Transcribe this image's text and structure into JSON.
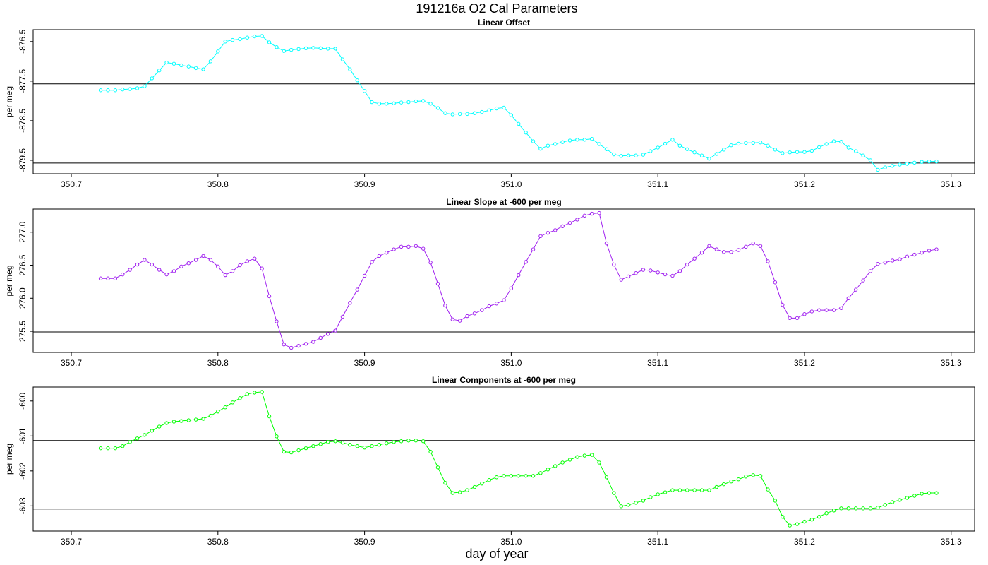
{
  "title": "191216a   O2 Cal Parameters",
  "chart_data": [
    {
      "type": "line",
      "title": "Linear Offset",
      "y_label": "per meg",
      "color": "#00ffff",
      "marker": "open-circle",
      "xlim": [
        350.674,
        351.316
      ],
      "xticks": [
        350.7,
        350.8,
        350.9,
        {
          "value": 351,
          "label": "351.0"
        },
        351.1,
        351.2,
        351.3
      ],
      "ylim": [
        -879.84,
        -876.2
      ],
      "yticks": [
        -876.5,
        -877.5,
        -878.5,
        -879.5
      ],
      "hlines": [
        -877.57,
        -879.57
      ],
      "x": [
        350.72,
        350.725,
        350.73,
        350.735,
        350.74,
        350.745,
        350.75,
        350.755,
        350.76,
        350.765,
        350.77,
        350.775,
        350.78,
        350.785,
        350.79,
        350.795,
        350.8,
        350.805,
        350.81,
        350.815,
        350.82,
        350.825,
        350.83,
        350.835,
        350.84,
        350.845,
        350.85,
        350.855,
        350.86,
        350.865,
        350.87,
        350.875,
        350.88,
        350.885,
        350.89,
        350.895,
        350.9,
        350.905,
        350.91,
        350.915,
        350.92,
        350.925,
        350.93,
        350.935,
        350.94,
        350.945,
        350.95,
        350.955,
        350.96,
        350.965,
        350.97,
        350.975,
        350.98,
        350.985,
        350.99,
        350.995,
        351,
        351.005,
        351.01,
        351.015,
        351.02,
        351.025,
        351.03,
        351.035,
        351.04,
        351.045,
        351.05,
        351.055,
        351.06,
        351.065,
        351.07,
        351.075,
        351.08,
        351.085,
        351.09,
        351.095,
        351.1,
        351.105,
        351.11,
        351.115,
        351.12,
        351.125,
        351.13,
        351.135,
        351.14,
        351.145,
        351.15,
        351.155,
        351.16,
        351.165,
        351.17,
        351.175,
        351.18,
        351.185,
        351.19,
        351.195,
        351.2,
        351.205,
        351.21,
        351.215,
        351.22,
        351.225,
        351.23,
        351.235,
        351.24,
        351.245,
        351.25,
        351.255,
        351.26,
        351.265,
        351.27,
        351.275,
        351.28,
        351.285,
        351.29
      ],
      "values": [
        -877.73,
        -877.73,
        -877.73,
        -877.71,
        -877.7,
        -877.68,
        -877.63,
        -877.43,
        -877.23,
        -877.03,
        -877.06,
        -877.1,
        -877.13,
        -877.17,
        -877.2,
        -877,
        -876.75,
        -876.5,
        -876.46,
        -876.44,
        -876.4,
        -876.37,
        -876.36,
        -876.52,
        -876.64,
        -876.74,
        -876.71,
        -876.69,
        -876.67,
        -876.66,
        -876.67,
        -876.68,
        -876.68,
        -876.95,
        -877.2,
        -877.48,
        -877.75,
        -878.03,
        -878.07,
        -878.07,
        -878.06,
        -878.04,
        -878.03,
        -878.01,
        -878,
        -878.07,
        -878.18,
        -878.31,
        -878.34,
        -878.33,
        -878.33,
        -878.31,
        -878.28,
        -878.24,
        -878.19,
        -878.17,
        -878.36,
        -878.58,
        -878.8,
        -879.02,
        -879.21,
        -879.13,
        -879.09,
        -879.04,
        -879,
        -878.98,
        -878.98,
        -878.96,
        -879.09,
        -879.22,
        -879.35,
        -879.39,
        -879.38,
        -879.38,
        -879.36,
        -879.27,
        -879.18,
        -879.08,
        -878.98,
        -879.13,
        -879.22,
        -879.3,
        -879.38,
        -879.46,
        -879.34,
        -879.23,
        -879.12,
        -879.08,
        -879.06,
        -879.06,
        -879.05,
        -879.13,
        -879.23,
        -879.32,
        -879.3,
        -879.29,
        -879.29,
        -879.26,
        -879.17,
        -879.09,
        -879.02,
        -879.03,
        -879.18,
        -879.27,
        -879.38,
        -879.5,
        -879.74,
        -879.68,
        -879.64,
        -879.61,
        -879.59,
        -879.56,
        -879.54,
        -879.53,
        -879.53
      ]
    },
    {
      "type": "line",
      "title": "Linear Slope at -600 per meg",
      "y_label": "per meg",
      "color": "#a020f0",
      "marker": "open-circle",
      "xlim": [
        350.674,
        351.316
      ],
      "xticks": [
        350.7,
        350.8,
        350.9,
        {
          "value": 351,
          "label": "351.0"
        },
        351.1,
        351.2,
        351.3
      ],
      "ylim": [
        275.18,
        277.35
      ],
      "yticks": [
        {
          "value": 277,
          "label": "277.0"
        },
        276.5,
        {
          "value": 276,
          "label": "276.0"
        },
        275.5
      ],
      "hlines": [
        275.49
      ],
      "x": [
        350.72,
        350.725,
        350.73,
        350.735,
        350.74,
        350.745,
        350.75,
        350.755,
        350.76,
        350.765,
        350.77,
        350.775,
        350.78,
        350.785,
        350.79,
        350.795,
        350.8,
        350.805,
        350.81,
        350.815,
        350.82,
        350.825,
        350.83,
        350.835,
        350.84,
        350.845,
        350.85,
        350.855,
        350.86,
        350.865,
        350.87,
        350.875,
        350.88,
        350.885,
        350.89,
        350.895,
        350.9,
        350.905,
        350.91,
        350.915,
        350.92,
        350.925,
        350.93,
        350.935,
        350.94,
        350.945,
        350.95,
        350.955,
        350.96,
        350.965,
        350.97,
        350.975,
        350.98,
        350.985,
        350.99,
        350.995,
        351,
        351.005,
        351.01,
        351.015,
        351.02,
        351.025,
        351.03,
        351.035,
        351.04,
        351.045,
        351.05,
        351.055,
        351.06,
        351.065,
        351.07,
        351.075,
        351.08,
        351.085,
        351.09,
        351.095,
        351.1,
        351.105,
        351.11,
        351.115,
        351.12,
        351.125,
        351.13,
        351.135,
        351.14,
        351.145,
        351.15,
        351.155,
        351.16,
        351.165,
        351.17,
        351.175,
        351.18,
        351.185,
        351.19,
        351.195,
        351.2,
        351.205,
        351.21,
        351.215,
        351.22,
        351.225,
        351.23,
        351.235,
        351.24,
        351.245,
        351.25,
        351.255,
        351.26,
        351.265,
        351.27,
        351.275,
        351.28,
        351.285,
        351.29
      ],
      "values": [
        276.3,
        276.3,
        276.3,
        276.36,
        276.43,
        276.51,
        276.58,
        276.51,
        276.43,
        276.36,
        276.41,
        276.48,
        276.53,
        276.58,
        276.64,
        276.58,
        276.48,
        276.35,
        276.41,
        276.5,
        276.56,
        276.6,
        276.45,
        276.03,
        275.65,
        275.3,
        275.25,
        275.28,
        275.31,
        275.34,
        275.4,
        275.46,
        275.51,
        275.72,
        275.93,
        276.13,
        276.34,
        276.55,
        276.64,
        276.69,
        276.74,
        276.78,
        276.78,
        276.79,
        276.75,
        276.54,
        276.22,
        275.89,
        275.68,
        275.66,
        275.73,
        275.77,
        275.82,
        275.88,
        275.92,
        275.97,
        276.15,
        276.35,
        276.55,
        276.74,
        276.94,
        276.99,
        277.03,
        277.09,
        277.14,
        277.19,
        277.25,
        277.28,
        277.29,
        276.83,
        276.51,
        276.28,
        276.33,
        276.38,
        276.43,
        276.42,
        276.39,
        276.36,
        276.34,
        276.41,
        276.51,
        276.6,
        276.69,
        276.79,
        276.74,
        276.7,
        276.7,
        276.73,
        276.78,
        276.83,
        276.79,
        276.56,
        276.24,
        275.9,
        275.7,
        275.7,
        275.76,
        275.8,
        275.82,
        275.82,
        275.82,
        275.85,
        276,
        276.13,
        276.27,
        276.41,
        276.52,
        276.54,
        276.57,
        276.59,
        276.63,
        276.66,
        276.69,
        276.72,
        276.74
      ]
    },
    {
      "type": "line",
      "title": "Linear Components at -600 per meg",
      "y_label": "per meg",
      "x_label": "day of year",
      "color": "#00ff00",
      "marker": "open-circle",
      "xlim": [
        350.674,
        351.316
      ],
      "xticks": [
        350.7,
        350.8,
        350.9,
        {
          "value": 351,
          "label": "351.0"
        },
        351.1,
        351.2,
        351.3
      ],
      "ylim": [
        -603.72,
        -599.6
      ],
      "yticks": [
        -600,
        -601,
        -602,
        -603
      ],
      "hlines": [
        -601.13,
        -603.09
      ],
      "x": [
        350.72,
        350.725,
        350.73,
        350.735,
        350.74,
        350.745,
        350.75,
        350.755,
        350.76,
        350.765,
        350.77,
        350.775,
        350.78,
        350.785,
        350.79,
        350.795,
        350.8,
        350.805,
        350.81,
        350.815,
        350.82,
        350.825,
        350.83,
        350.835,
        350.84,
        350.845,
        350.85,
        350.855,
        350.86,
        350.865,
        350.87,
        350.875,
        350.88,
        350.885,
        350.89,
        350.895,
        350.9,
        350.905,
        350.91,
        350.915,
        350.92,
        350.925,
        350.93,
        350.935,
        350.94,
        350.945,
        350.95,
        350.955,
        350.96,
        350.965,
        350.97,
        350.975,
        350.98,
        350.985,
        350.99,
        350.995,
        351,
        351.005,
        351.01,
        351.015,
        351.02,
        351.025,
        351.03,
        351.035,
        351.04,
        351.045,
        351.05,
        351.055,
        351.06,
        351.065,
        351.07,
        351.075,
        351.08,
        351.085,
        351.09,
        351.095,
        351.1,
        351.105,
        351.11,
        351.115,
        351.12,
        351.125,
        351.13,
        351.135,
        351.14,
        351.145,
        351.15,
        351.155,
        351.16,
        351.165,
        351.17,
        351.175,
        351.18,
        351.185,
        351.19,
        351.195,
        351.2,
        351.205,
        351.21,
        351.215,
        351.22,
        351.225,
        351.23,
        351.235,
        351.24,
        351.245,
        351.25,
        351.255,
        351.26,
        351.265,
        351.27,
        351.275,
        351.28,
        351.285,
        351.29
      ],
      "values": [
        -601.35,
        -601.35,
        -601.35,
        -601.29,
        -601.17,
        -601.07,
        -600.97,
        -600.85,
        -600.73,
        -600.63,
        -600.59,
        -600.57,
        -600.55,
        -600.53,
        -600.51,
        -600.42,
        -600.3,
        -600.18,
        -600.04,
        -599.92,
        -599.8,
        -599.76,
        -599.74,
        -600.44,
        -601.01,
        -601.45,
        -601.47,
        -601.41,
        -601.35,
        -601.29,
        -601.23,
        -601.17,
        -601.15,
        -601.19,
        -601.25,
        -601.29,
        -601.33,
        -601.29,
        -601.25,
        -601.21,
        -601.17,
        -601.15,
        -601.13,
        -601.13,
        -601.15,
        -601.45,
        -601.9,
        -602.34,
        -602.63,
        -602.61,
        -602.55,
        -602.46,
        -602.36,
        -602.26,
        -602.18,
        -602.14,
        -602.14,
        -602.14,
        -602.14,
        -602.14,
        -602.06,
        -601.96,
        -601.86,
        -601.76,
        -601.68,
        -601.6,
        -601.56,
        -601.54,
        -601.76,
        -602.18,
        -602.63,
        -603.01,
        -602.97,
        -602.91,
        -602.85,
        -602.75,
        -602.67,
        -602.61,
        -602.55,
        -602.55,
        -602.55,
        -602.55,
        -602.55,
        -602.55,
        -602.46,
        -602.38,
        -602.3,
        -602.24,
        -602.16,
        -602.12,
        -602.14,
        -602.53,
        -602.85,
        -603.31,
        -603.56,
        -603.52,
        -603.45,
        -603.39,
        -603.31,
        -603.21,
        -603.13,
        -603.07,
        -603.07,
        -603.07,
        -603.07,
        -603.07,
        -603.05,
        -602.97,
        -602.89,
        -602.83,
        -602.77,
        -602.71,
        -602.65,
        -602.63,
        -602.63
      ]
    }
  ]
}
